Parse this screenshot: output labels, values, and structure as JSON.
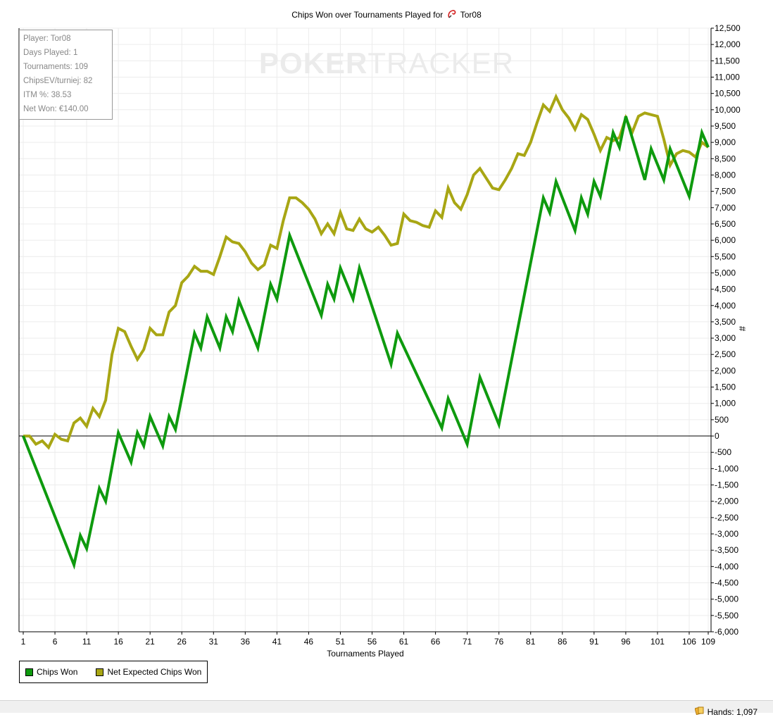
{
  "page": {
    "title_prefix": "Chips Won over Tournaments Played for",
    "player_name": "Tor08",
    "watermark_part1": "POKER",
    "watermark_part2": "TRACKER",
    "status_hands": "Hands: 1,097"
  },
  "stats": {
    "player": "Player: Tor08",
    "days_played": "Days Played: 1",
    "tournaments": "Tournaments: 109",
    "chipsev": "ChipsEV/turniej: 82",
    "itm": "ITM %: 38.53",
    "net_won": "Net Won: €140.00"
  },
  "chart_data": {
    "type": "line",
    "title": "Chips Won over Tournaments Played for Tor08",
    "xlabel": "Tournaments Played",
    "ylabel": "#",
    "xlim": [
      0,
      109.5
    ],
    "ylim": [
      -6000,
      12500
    ],
    "x_ticks": [
      1,
      6,
      11,
      16,
      21,
      26,
      31,
      36,
      41,
      46,
      51,
      56,
      61,
      66,
      71,
      76,
      81,
      86,
      91,
      96,
      101,
      106,
      109
    ],
    "y_ticks": [
      12500,
      12000,
      11500,
      11000,
      10500,
      10000,
      9500,
      9000,
      8500,
      8000,
      7500,
      7000,
      6500,
      6000,
      5500,
      5000,
      4500,
      4000,
      3500,
      3000,
      2500,
      2000,
      1500,
      1000,
      500,
      0,
      -500,
      -1000,
      -1500,
      -2000,
      -2500,
      -3000,
      -3500,
      -4000,
      -4500,
      -5000,
      -5500,
      -6000
    ],
    "y_tick_labels": [
      "12,500",
      "12,000",
      "11,500",
      "11,000",
      "10,500",
      "10,000",
      "9,500",
      "9,000",
      "8,500",
      "8,000",
      "7,500",
      "7,000",
      "6,500",
      "6,000",
      "5,500",
      "5,000",
      "4,500",
      "4,000",
      "3,500",
      "3,000",
      "2,500",
      "2,000",
      "1,500",
      "1,000",
      "500",
      "0",
      "-500",
      "-1,000",
      "-1,500",
      "-2,000",
      "-2,500",
      "-3,000",
      "-3,500",
      "-4,000",
      "-4,500",
      "-5,000",
      "-5,500",
      "-6,000"
    ],
    "grid": true,
    "legend_position": "bottom-left",
    "series": [
      {
        "name": "Chips Won",
        "color": "#0e9a0e",
        "points": [
          [
            1,
            0
          ],
          [
            9,
            -3950
          ],
          [
            10,
            -3050
          ],
          [
            11,
            -3450
          ],
          [
            13,
            -1600
          ],
          [
            14,
            -2000
          ],
          [
            16,
            100
          ],
          [
            18,
            -800
          ],
          [
            19,
            100
          ],
          [
            20,
            -300
          ],
          [
            21,
            600
          ],
          [
            23,
            -300
          ],
          [
            24,
            600
          ],
          [
            25,
            200
          ],
          [
            28,
            3150
          ],
          [
            29,
            2700
          ],
          [
            30,
            3650
          ],
          [
            32,
            2700
          ],
          [
            33,
            3650
          ],
          [
            34,
            3200
          ],
          [
            35,
            4150
          ],
          [
            38,
            2700
          ],
          [
            40,
            4650
          ],
          [
            41,
            4200
          ],
          [
            43,
            6150
          ],
          [
            48,
            3700
          ],
          [
            49,
            4650
          ],
          [
            50,
            4200
          ],
          [
            51,
            5150
          ],
          [
            53,
            4200
          ],
          [
            54,
            5150
          ],
          [
            59,
            2200
          ],
          [
            60,
            3150
          ],
          [
            67,
            250
          ],
          [
            68,
            1150
          ],
          [
            71,
            -250
          ],
          [
            73,
            1800
          ],
          [
            76,
            350
          ],
          [
            83,
            7300
          ],
          [
            84,
            6850
          ],
          [
            85,
            7800
          ],
          [
            88,
            6300
          ],
          [
            89,
            7300
          ],
          [
            90,
            6800
          ],
          [
            91,
            7800
          ],
          [
            92,
            7350
          ],
          [
            94,
            9300
          ],
          [
            95,
            8850
          ],
          [
            96,
            9800
          ],
          [
            99,
            7850
          ],
          [
            100,
            8800
          ],
          [
            102,
            7850
          ],
          [
            103,
            8800
          ],
          [
            106,
            7350
          ],
          [
            108,
            9300
          ],
          [
            109,
            8850
          ]
        ]
      },
      {
        "name": "Net Expected Chips Won",
        "color": "#a8a614",
        "points": [
          [
            1,
            0
          ],
          [
            2,
            0
          ],
          [
            3,
            -250
          ],
          [
            4,
            -150
          ],
          [
            5,
            -350
          ],
          [
            6,
            50
          ],
          [
            7,
            -100
          ],
          [
            8,
            -150
          ],
          [
            9,
            400
          ],
          [
            10,
            550
          ],
          [
            11,
            300
          ],
          [
            12,
            850
          ],
          [
            13,
            600
          ],
          [
            14,
            1100
          ],
          [
            15,
            2500
          ],
          [
            16,
            3300
          ],
          [
            17,
            3200
          ],
          [
            18,
            2750
          ],
          [
            19,
            2350
          ],
          [
            20,
            2650
          ],
          [
            21,
            3300
          ],
          [
            22,
            3100
          ],
          [
            23,
            3100
          ],
          [
            24,
            3800
          ],
          [
            25,
            4000
          ],
          [
            26,
            4700
          ],
          [
            27,
            4900
          ],
          [
            28,
            5200
          ],
          [
            29,
            5050
          ],
          [
            30,
            5050
          ],
          [
            31,
            4950
          ],
          [
            32,
            5500
          ],
          [
            33,
            6100
          ],
          [
            34,
            5950
          ],
          [
            35,
            5900
          ],
          [
            36,
            5650
          ],
          [
            37,
            5300
          ],
          [
            38,
            5100
          ],
          [
            39,
            5250
          ],
          [
            40,
            5850
          ],
          [
            41,
            5750
          ],
          [
            42,
            6600
          ],
          [
            43,
            7300
          ],
          [
            44,
            7300
          ],
          [
            45,
            7150
          ],
          [
            46,
            6950
          ],
          [
            47,
            6650
          ],
          [
            48,
            6200
          ],
          [
            49,
            6500
          ],
          [
            50,
            6200
          ],
          [
            51,
            6850
          ],
          [
            52,
            6350
          ],
          [
            53,
            6300
          ],
          [
            54,
            6650
          ],
          [
            55,
            6350
          ],
          [
            56,
            6250
          ],
          [
            57,
            6400
          ],
          [
            58,
            6150
          ],
          [
            59,
            5850
          ],
          [
            60,
            5900
          ],
          [
            61,
            6800
          ],
          [
            62,
            6600
          ],
          [
            63,
            6550
          ],
          [
            64,
            6450
          ],
          [
            65,
            6400
          ],
          [
            66,
            6900
          ],
          [
            67,
            6700
          ],
          [
            68,
            7600
          ],
          [
            69,
            7150
          ],
          [
            70,
            6950
          ],
          [
            71,
            7400
          ],
          [
            72,
            8000
          ],
          [
            73,
            8200
          ],
          [
            74,
            7900
          ],
          [
            75,
            7600
          ],
          [
            76,
            7550
          ],
          [
            77,
            7850
          ],
          [
            78,
            8200
          ],
          [
            79,
            8650
          ],
          [
            80,
            8600
          ],
          [
            81,
            9000
          ],
          [
            82,
            9600
          ],
          [
            83,
            10150
          ],
          [
            84,
            9950
          ],
          [
            85,
            10400
          ],
          [
            86,
            10000
          ],
          [
            87,
            9750
          ],
          [
            88,
            9400
          ],
          [
            89,
            9850
          ],
          [
            90,
            9700
          ],
          [
            91,
            9250
          ],
          [
            92,
            8750
          ],
          [
            93,
            9150
          ],
          [
            94,
            9050
          ],
          [
            95,
            9150
          ],
          [
            96,
            9750
          ],
          [
            97,
            9300
          ],
          [
            98,
            9800
          ],
          [
            99,
            9900
          ],
          [
            100,
            9850
          ],
          [
            101,
            9800
          ],
          [
            102,
            9100
          ],
          [
            103,
            8300
          ],
          [
            104,
            8650
          ],
          [
            105,
            8750
          ],
          [
            106,
            8700
          ],
          [
            107,
            8550
          ],
          [
            108,
            9000
          ],
          [
            109,
            8850
          ]
        ]
      }
    ]
  }
}
